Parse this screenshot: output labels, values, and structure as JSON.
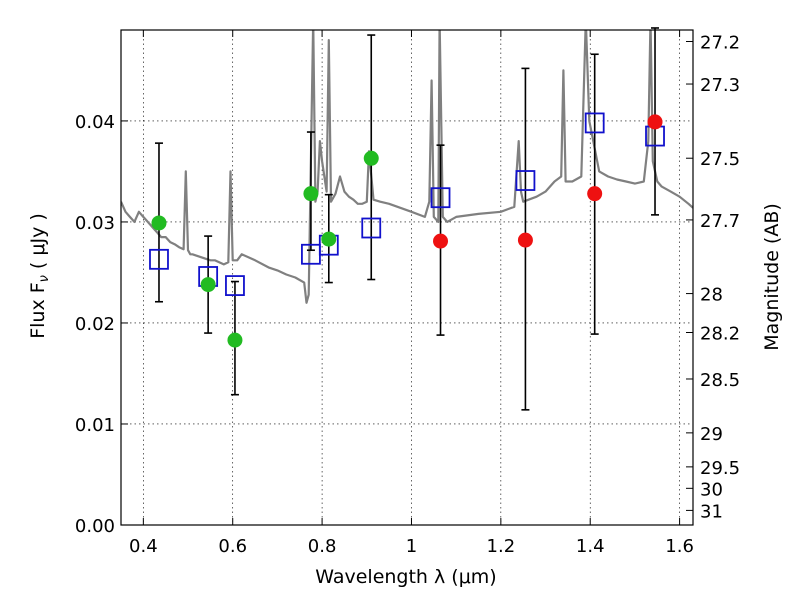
{
  "chart_data": {
    "type": "scatter",
    "xlabel": "Wavelength  λ (μm)",
    "ylabel": "Flux  F",
    "ylabel_sub": "ν",
    "ylabel_unit": "( μJy )",
    "y2label": "Magnitude (AB)",
    "xlim": [
      0.35,
      1.63
    ],
    "ylim": [
      0.0,
      0.049
    ],
    "grid": true,
    "x_ticks": [
      0.4,
      0.6,
      0.8,
      1.0,
      1.2,
      1.4,
      1.6
    ],
    "x_tick_labels": [
      "0.4",
      "0.6",
      "0.8",
      "1",
      "1.2",
      "1.4",
      "1.6"
    ],
    "y_ticks": [
      0.0,
      0.01,
      0.02,
      0.03,
      0.04
    ],
    "y_tick_labels": [
      "0.00",
      "0.01",
      "0.02",
      "0.03",
      "0.04"
    ],
    "y2_ticks": [
      27.2,
      27.3,
      27.5,
      27.7,
      28,
      28.2,
      28.5,
      29,
      29.5,
      30,
      31
    ],
    "y2_tick_labels": [
      "27.2",
      "27.3",
      "27.5",
      "27.7",
      "28",
      "28.2",
      "28.5",
      "29",
      "29.5",
      "30",
      "31"
    ],
    "colors": {
      "green": "#22bb22",
      "red": "#ee1111",
      "model_box": "#1111cc",
      "template": "#808080",
      "errorbar": "#000000"
    },
    "series": [
      {
        "name": "model photometry",
        "marker": "square",
        "x": [
          0.435,
          0.545,
          0.605,
          0.775,
          0.815,
          0.91,
          1.065,
          1.255,
          1.41,
          1.545
        ],
        "y": [
          0.0263,
          0.0246,
          0.0237,
          0.0268,
          0.0277,
          0.0294,
          0.0324,
          0.0341,
          0.0398,
          0.0385
        ]
      },
      {
        "name": "green measurements",
        "marker": "circle",
        "x": [
          0.435,
          0.545,
          0.605,
          0.775,
          0.815,
          0.91
        ],
        "y": [
          0.0299,
          0.0238,
          0.0183,
          0.0328,
          0.0283,
          0.0363
        ],
        "yerr_low": [
          0.0221,
          0.019,
          0.0129,
          0.0272,
          0.024,
          0.0243
        ],
        "yerr_high": [
          0.0378,
          0.0286,
          0.0241,
          0.0389,
          0.0327,
          0.0485
        ]
      },
      {
        "name": "red measurements",
        "marker": "circle",
        "x": [
          1.065,
          1.255,
          1.41,
          1.545
        ],
        "y": [
          0.0281,
          0.0282,
          0.0328,
          0.0399
        ],
        "yerr_low": [
          0.0188,
          0.0114,
          0.0189,
          0.0307
        ],
        "yerr_high": [
          0.0376,
          0.0452,
          0.0466,
          0.0492
        ]
      },
      {
        "name": "template spectrum",
        "type": "line",
        "x": [
          0.35,
          0.36,
          0.37,
          0.38,
          0.39,
          0.4,
          0.41,
          0.42,
          0.43,
          0.44,
          0.45,
          0.46,
          0.47,
          0.48,
          0.49,
          0.495,
          0.5,
          0.505,
          0.51,
          0.53,
          0.55,
          0.56,
          0.58,
          0.59,
          0.595,
          0.6,
          0.61,
          0.62,
          0.65,
          0.68,
          0.7,
          0.72,
          0.74,
          0.76,
          0.765,
          0.77,
          0.78,
          0.785,
          0.79,
          0.795,
          0.8,
          0.81,
          0.815,
          0.82,
          0.83,
          0.84,
          0.85,
          0.86,
          0.87,
          0.88,
          0.89,
          0.9,
          0.905,
          0.915,
          0.93,
          0.95,
          1.0,
          1.03,
          1.04,
          1.045,
          1.05,
          1.06,
          1.063,
          1.07,
          1.08,
          1.1,
          1.15,
          1.2,
          1.23,
          1.24,
          1.245,
          1.25,
          1.28,
          1.3,
          1.32,
          1.335,
          1.34,
          1.345,
          1.36,
          1.38,
          1.39,
          1.398,
          1.42,
          1.44,
          1.46,
          1.48,
          1.5,
          1.52,
          1.53,
          1.535,
          1.54,
          1.55,
          1.56,
          1.58,
          1.6,
          1.62,
          1.63
        ],
        "y": [
          0.032,
          0.031,
          0.0305,
          0.03,
          0.031,
          0.0305,
          0.03,
          0.0295,
          0.029,
          0.0285,
          0.0285,
          0.028,
          0.0278,
          0.0275,
          0.0273,
          0.035,
          0.0272,
          0.0268,
          0.0268,
          0.0265,
          0.0262,
          0.0262,
          0.0258,
          0.026,
          0.035,
          0.0262,
          0.0262,
          0.0268,
          0.0262,
          0.0255,
          0.0252,
          0.0248,
          0.0245,
          0.024,
          0.022,
          0.0228,
          0.05,
          0.032,
          0.033,
          0.038,
          0.036,
          0.033,
          0.048,
          0.032,
          0.0328,
          0.0345,
          0.033,
          0.0325,
          0.0322,
          0.0318,
          0.0318,
          0.032,
          0.037,
          0.0322,
          0.032,
          0.0318,
          0.031,
          0.0305,
          0.032,
          0.044,
          0.0305,
          0.03,
          0.05,
          0.0305,
          0.03,
          0.0305,
          0.0308,
          0.031,
          0.0315,
          0.038,
          0.033,
          0.032,
          0.0325,
          0.033,
          0.034,
          0.0345,
          0.045,
          0.034,
          0.034,
          0.0345,
          0.05,
          0.04,
          0.035,
          0.0345,
          0.0342,
          0.034,
          0.0338,
          0.034,
          0.038,
          0.05,
          0.036,
          0.034,
          0.0335,
          0.033,
          0.0325,
          0.0318,
          0.0314
        ]
      }
    ]
  }
}
